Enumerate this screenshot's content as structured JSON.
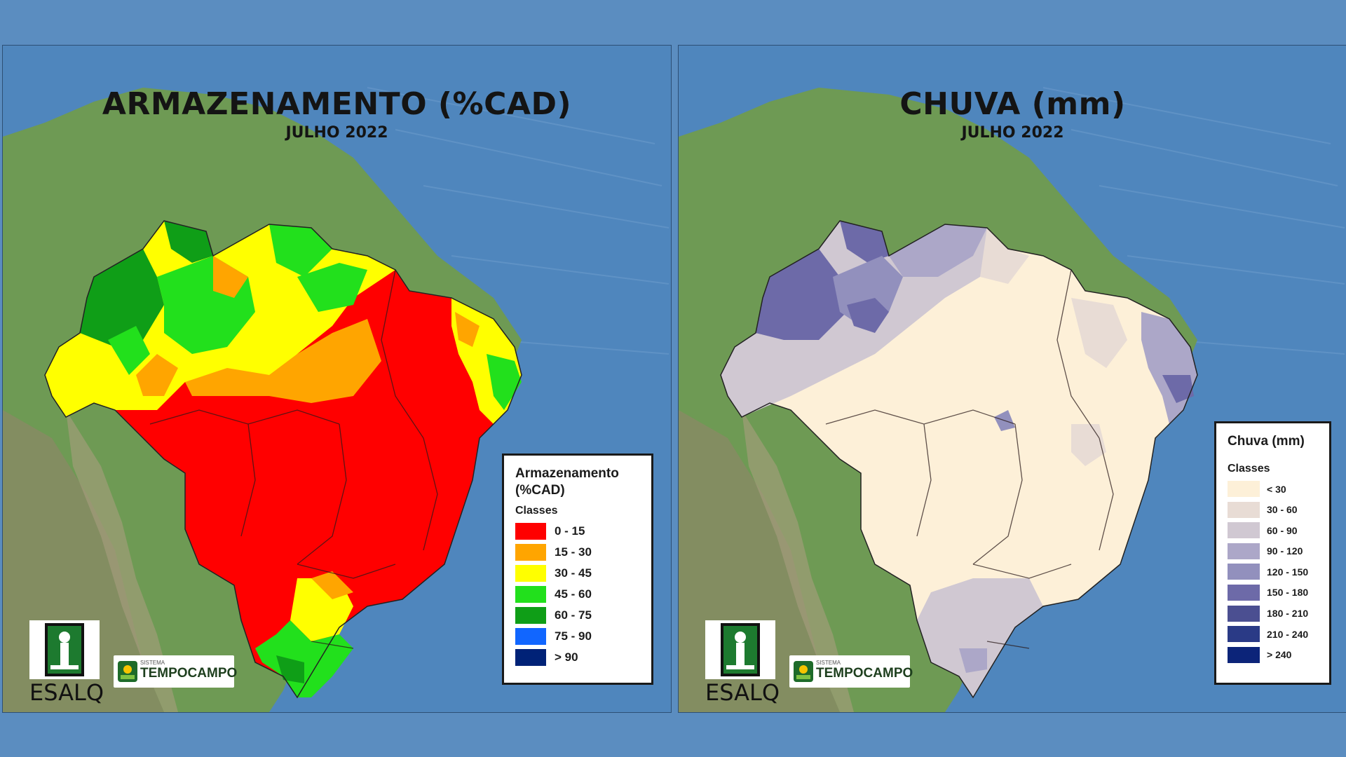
{
  "left_map": {
    "title": "ARMAZENAMENTO (%CAD)",
    "subtitle": "JULHO 2022",
    "legend": {
      "title_line1": "Armazenamento",
      "title_line2": "(%CAD)",
      "classes_label": "Classes",
      "items": [
        {
          "label": "0 - 15",
          "color": "#ff0000"
        },
        {
          "label": "15 - 30",
          "color": "#ffa500"
        },
        {
          "label": "30 - 45",
          "color": "#ffff00"
        },
        {
          "label": "45 - 60",
          "color": "#22e01c"
        },
        {
          "label": "60 - 75",
          "color": "#0f9e17"
        },
        {
          "label": "75 - 90",
          "color": "#1166ff"
        },
        {
          "label": "> 90",
          "color": "#002277"
        }
      ]
    }
  },
  "right_map": {
    "title": "CHUVA (mm)",
    "subtitle": "JULHO 2022",
    "legend": {
      "title": "Chuva (mm)",
      "classes_label": "Classes",
      "items": [
        {
          "label": "< 30",
          "color": "#fdf0d8"
        },
        {
          "label": "30 - 60",
          "color": "#e8dcd5"
        },
        {
          "label": "60 - 90",
          "color": "#d0c8d2"
        },
        {
          "label": "90 - 120",
          "color": "#aca7c8"
        },
        {
          "label": "120 - 150",
          "color": "#9290bd"
        },
        {
          "label": "150 - 180",
          "color": "#6d6aa8"
        },
        {
          "label": "180 - 210",
          "color": "#4b4f91"
        },
        {
          "label": "210 - 240",
          "color": "#2a3a86"
        },
        {
          "label": "> 240",
          "color": "#0c2479"
        }
      ]
    }
  },
  "logos": {
    "esalq_text": "ESALQ",
    "tempocampo_small": "SISTEMA",
    "tempocampo_big": "TEMPOCAMPO"
  }
}
